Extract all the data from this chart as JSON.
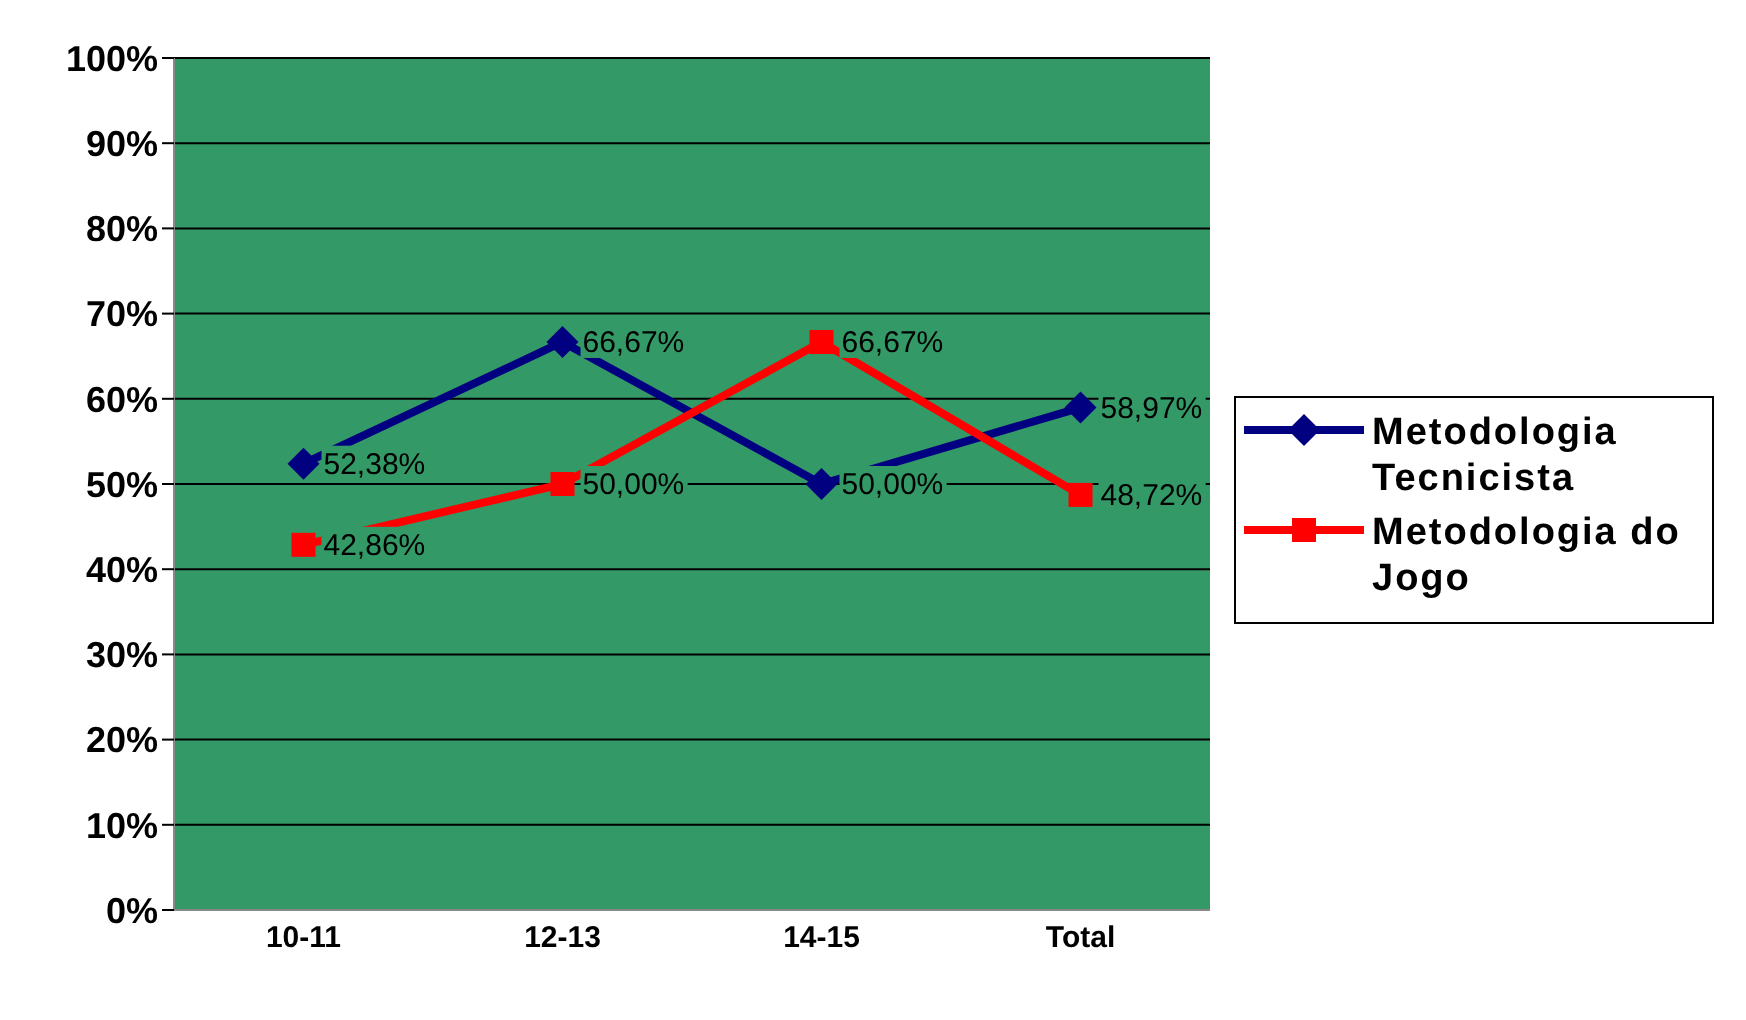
{
  "chart_data": {
    "type": "line",
    "categories": [
      "10-11",
      "12-13",
      "14-15",
      "Total"
    ],
    "series": [
      {
        "name": "Metodologia Tecnicista",
        "color": "#000080",
        "marker": "diamond",
        "values": [
          52.38,
          66.67,
          50.0,
          58.97
        ],
        "value_labels": [
          "52,38%",
          "66,67%",
          "50,00%",
          "58,97%"
        ]
      },
      {
        "name": "Metodologia do Jogo",
        "color": "#ff0000",
        "marker": "square",
        "values": [
          42.86,
          50.0,
          66.67,
          48.72
        ],
        "value_labels": [
          "42,86%",
          "50,00%",
          "66,67%",
          "48,72%"
        ]
      }
    ],
    "ylim": [
      0,
      100
    ],
    "yticks": [
      {
        "value": 0,
        "label": "0%"
      },
      {
        "value": 10,
        "label": "10%"
      },
      {
        "value": 20,
        "label": "20%"
      },
      {
        "value": 30,
        "label": "30%"
      },
      {
        "value": 40,
        "label": "40%"
      },
      {
        "value": 50,
        "label": "50%"
      },
      {
        "value": 60,
        "label": "60%"
      },
      {
        "value": 70,
        "label": "70%"
      },
      {
        "value": 80,
        "label": "80%"
      },
      {
        "value": 90,
        "label": "90%"
      },
      {
        "value": 100,
        "label": "100%"
      }
    ],
    "grid": "y",
    "legend": "right"
  }
}
